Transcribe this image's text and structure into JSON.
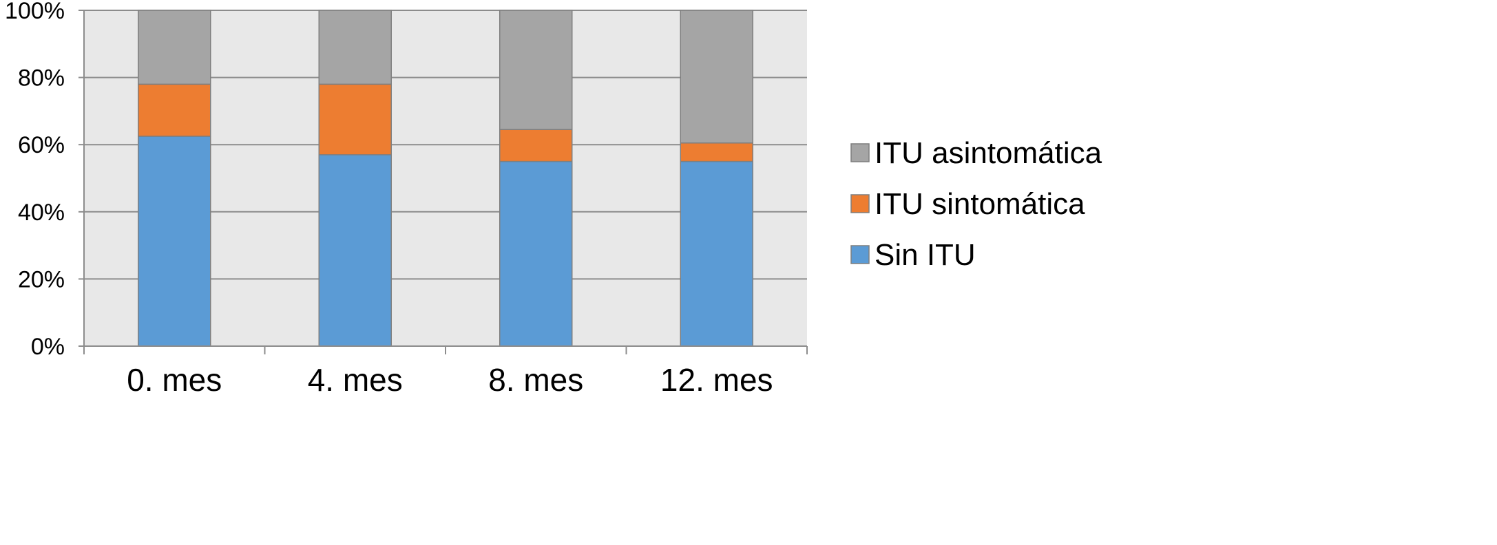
{
  "chart_data": {
    "type": "bar",
    "stacked": true,
    "stack_mode": "percent",
    "categories": [
      "0. mes",
      "4. mes",
      "8. mes",
      "12. mes"
    ],
    "series": [
      {
        "name": "Sin ITU",
        "values": [
          62.5,
          57,
          55,
          55
        ],
        "color": "#5b9bd5"
      },
      {
        "name": "ITU sintomática",
        "values": [
          15.5,
          21,
          9.5,
          5.5
        ],
        "color": "#ed7d31"
      },
      {
        "name": "ITU asintomática",
        "values": [
          22,
          22,
          35.5,
          39.5
        ],
        "color": "#a5a5a5"
      }
    ],
    "y_ticks": [
      "0%",
      "20%",
      "40%",
      "60%",
      "80%",
      "100%"
    ],
    "ylim": [
      0,
      100
    ],
    "grid": true,
    "legend_position": "right",
    "legend_order": [
      "ITU asintomática",
      "ITU sintomática",
      "Sin ITU"
    ],
    "plot_background": "#e8e8e8",
    "title": "",
    "xlabel": "",
    "ylabel": ""
  }
}
